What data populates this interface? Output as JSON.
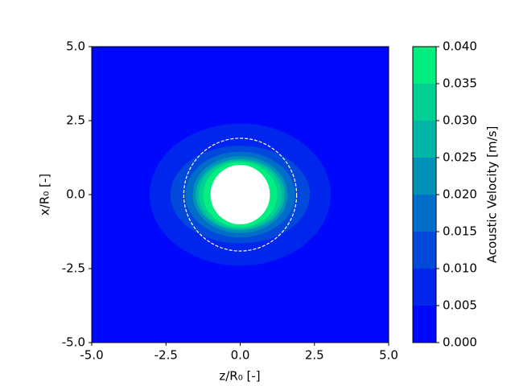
{
  "chart_data": {
    "type": "contour",
    "xlabel": "z/R₀ [-]",
    "ylabel": "x/R₀ [-]",
    "xlim": [
      -5,
      5
    ],
    "ylim": [
      -5,
      5
    ],
    "xticks": [
      {
        "value": -5,
        "label": "-5.0"
      },
      {
        "value": -2.5,
        "label": "-2.5"
      },
      {
        "value": 0,
        "label": "0.0"
      },
      {
        "value": 2.5,
        "label": "2.5"
      },
      {
        "value": 5,
        "label": "5.0"
      }
    ],
    "yticks": [
      {
        "value": -5,
        "label": "-5.0"
      },
      {
        "value": -2.5,
        "label": "-2.5"
      },
      {
        "value": 0,
        "label": "0.0"
      },
      {
        "value": 2.5,
        "label": "2.5"
      },
      {
        "value": 5,
        "label": "5.0"
      }
    ],
    "contours": [
      {
        "z_half_width": 3.05,
        "x_half_height": 2.4
      },
      {
        "z_half_width": 2.35,
        "x_half_height": 1.65
      },
      {
        "z_half_width": 1.85,
        "x_half_height": 1.45
      },
      {
        "z_half_width": 1.6,
        "x_half_height": 1.3
      },
      {
        "z_half_width": 1.5,
        "x_half_height": 1.2
      },
      {
        "z_half_width": 1.4,
        "x_half_height": 1.15
      },
      {
        "z_half_width": 1.25,
        "x_half_height": 1.1
      }
    ],
    "hole_radius": 1.0,
    "dashed_circle_radius": 1.9,
    "colorbar": {
      "label": "Acoustic Velocity [m/s]",
      "levels": [
        0,
        0.005,
        0.01,
        0.015,
        0.02,
        0.025,
        0.03,
        0.035,
        0.04
      ],
      "colors": [
        "#0008fb",
        "#0025ed",
        "#0049db",
        "#006dc9",
        "#0092b6",
        "#00b6a4",
        "#00d092",
        "#00ef80"
      ],
      "ticks": [
        {
          "value": 0,
          "label": "0.000"
        },
        {
          "value": 0.005,
          "label": "0.005"
        },
        {
          "value": 0.01,
          "label": "0.010"
        },
        {
          "value": 0.015,
          "label": "0.015"
        },
        {
          "value": 0.02,
          "label": "0.020"
        },
        {
          "value": 0.025,
          "label": "0.025"
        },
        {
          "value": 0.03,
          "label": "0.030"
        },
        {
          "value": 0.035,
          "label": "0.035"
        },
        {
          "value": 0.04,
          "label": "0.040"
        }
      ]
    }
  }
}
